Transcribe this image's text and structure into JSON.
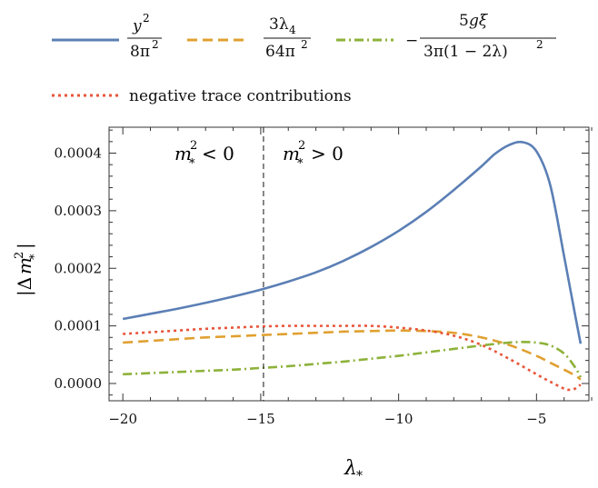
{
  "chart_data": {
    "type": "line",
    "xlabel": "λ*",
    "ylabel": "|Δm*²|",
    "xlim": [
      -20.5,
      -3.1
    ],
    "ylim": [
      -3e-05,
      0.000445
    ],
    "xticks": [
      {
        "value": -20,
        "label": "−20"
      },
      {
        "value": -15,
        "label": "−15"
      },
      {
        "value": -10,
        "label": "−10"
      },
      {
        "value": -5,
        "label": "−5"
      }
    ],
    "yticks": [
      {
        "value": 0.0,
        "label": "0.0000"
      },
      {
        "value": 0.0001,
        "label": "0.0001"
      },
      {
        "value": 0.0002,
        "label": "0.0002"
      },
      {
        "value": 0.0003,
        "label": "0.0003"
      },
      {
        "value": 0.0004,
        "label": "0.0004"
      }
    ],
    "legend_position": "top",
    "vline": {
      "x": -14.9,
      "style": "dashed"
    },
    "region_labels": {
      "left": "m*² < 0",
      "right": "m*² > 0"
    },
    "series": [
      {
        "name": "y²/8π²",
        "color": "#5b7fb5",
        "dash": "solid",
        "x": [
          -20,
          -19,
          -18,
          -17,
          -16,
          -15,
          -14,
          -13,
          -12,
          -11,
          -10,
          -9,
          -8,
          -7,
          -6.5,
          -6,
          -5.5,
          -5,
          -4.5,
          -4,
          -3.6,
          -3.4
        ],
        "values": [
          0.000112,
          0.000121,
          0.00013,
          0.00014,
          0.000151,
          0.000163,
          0.000177,
          0.000193,
          0.000213,
          0.000237,
          0.000265,
          0.000298,
          0.000336,
          0.000377,
          0.000399,
          0.000414,
          0.000419,
          0.000403,
          0.000344,
          0.000221,
          0.000119,
          6.9e-05
        ]
      },
      {
        "name": "3λ₄/64π²",
        "color": "#e0a030",
        "dash": "long-dash",
        "x": [
          -20,
          -19,
          -18,
          -17,
          -16,
          -15,
          -14,
          -13,
          -12,
          -11,
          -10,
          -9,
          -8,
          -7,
          -6,
          -5,
          -4.5,
          -4,
          -3.6,
          -3.4
        ],
        "values": [
          7.1e-05,
          7.4e-05,
          7.7e-05,
          8e-05,
          8.2e-05,
          8.4e-05,
          8.6e-05,
          8.8e-05,
          9e-05,
          9.1e-05,
          9.2e-05,
          9.1e-05,
          8.8e-05,
          8e-05,
          6.7e-05,
          4.8e-05,
          3.6e-05,
          2.4e-05,
          1.4e-05,
          7e-06
        ]
      },
      {
        "name": "−5gξ/3π(1−2λ)²",
        "color": "#8db23a",
        "dash": "dash-dot",
        "x": [
          -20,
          -19,
          -18,
          -17,
          -16,
          -15,
          -14,
          -13,
          -12,
          -11,
          -10,
          -9,
          -8,
          -7,
          -6,
          -5.5,
          -5,
          -4.5,
          -4,
          -3.6,
          -3.4
        ],
        "values": [
          1.6e-05,
          1.8e-05,
          2e-05,
          2.2e-05,
          2.4e-05,
          2.7e-05,
          3e-05,
          3.4e-05,
          3.8e-05,
          4.3e-05,
          4.8e-05,
          5.4e-05,
          6e-05,
          6.6e-05,
          7.1e-05,
          7.2e-05,
          7.1e-05,
          6.6e-05,
          5.2e-05,
          2.8e-05,
          1.1e-05
        ]
      },
      {
        "name": "negative trace contributions",
        "color": "#e8553a",
        "dash": "dotted",
        "x": [
          -20,
          -19,
          -18,
          -17,
          -16,
          -15,
          -14,
          -13,
          -12,
          -11,
          -10,
          -9,
          -8,
          -7,
          -6,
          -5,
          -4.5,
          -4,
          -3.8,
          -3.6,
          -3.4
        ],
        "values": [
          8.6e-05,
          8.9e-05,
          9.2e-05,
          9.5e-05,
          9.7e-05,
          9.9e-05,
          0.0001,
          0.0001,
          0.0001,
          0.0001,
          9.7e-05,
          9.2e-05,
          8.3e-05,
          6.7e-05,
          4.3e-05,
          1.6e-05,
          3e-06,
          -9e-06,
          -1.1e-05,
          -9e-06,
          -2e-06
        ]
      }
    ]
  }
}
